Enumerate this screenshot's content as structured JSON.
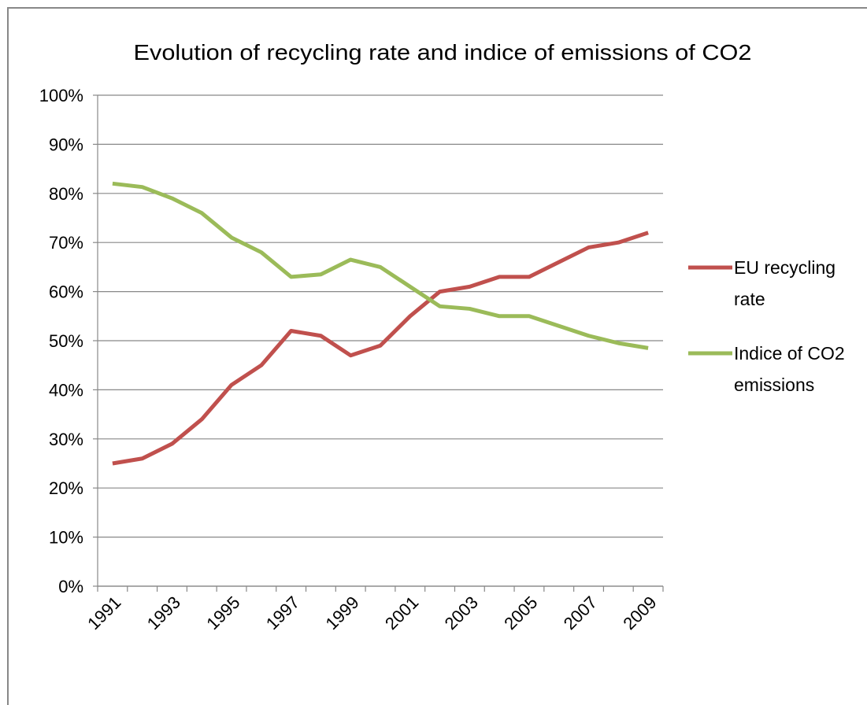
{
  "chart_data": {
    "type": "line",
    "title": "Evolution of recycling rate and indice of emissions of CO2",
    "categories": [
      "1991",
      null,
      "1993",
      null,
      "1995",
      null,
      "1997",
      null,
      "1999",
      null,
      "2001",
      null,
      "2003",
      null,
      "2005",
      null,
      "2007",
      null,
      "2009"
    ],
    "series": [
      {
        "name": "EU recycling rate",
        "color": "#c0504d",
        "values": [
          25,
          26,
          29,
          34,
          41,
          45,
          52,
          51,
          47,
          49,
          55,
          60,
          61,
          63,
          63,
          66,
          69,
          70,
          72
        ]
      },
      {
        "name": "Indice of CO2 emissions",
        "color": "#9bbb59",
        "values": [
          82,
          81.3,
          79,
          76,
          71,
          68,
          63,
          63.5,
          66.5,
          65,
          61,
          57,
          56.5,
          55,
          55,
          53,
          51,
          49.5,
          48.5
        ]
      }
    ],
    "ylim": [
      0,
      100
    ],
    "yticks": [
      {
        "value": 0,
        "label": "0%"
      },
      {
        "value": 10,
        "label": "10%"
      },
      {
        "value": 20,
        "label": "20%"
      },
      {
        "value": 30,
        "label": "30%"
      },
      {
        "value": 40,
        "label": "40%"
      },
      {
        "value": 50,
        "label": "50%"
      },
      {
        "value": 60,
        "label": "60%"
      },
      {
        "value": 70,
        "label": "70%"
      },
      {
        "value": 80,
        "label": "80%"
      },
      {
        "value": 90,
        "label": "90%"
      },
      {
        "value": 100,
        "label": "100%"
      }
    ],
    "grid": true,
    "legend": "right"
  }
}
